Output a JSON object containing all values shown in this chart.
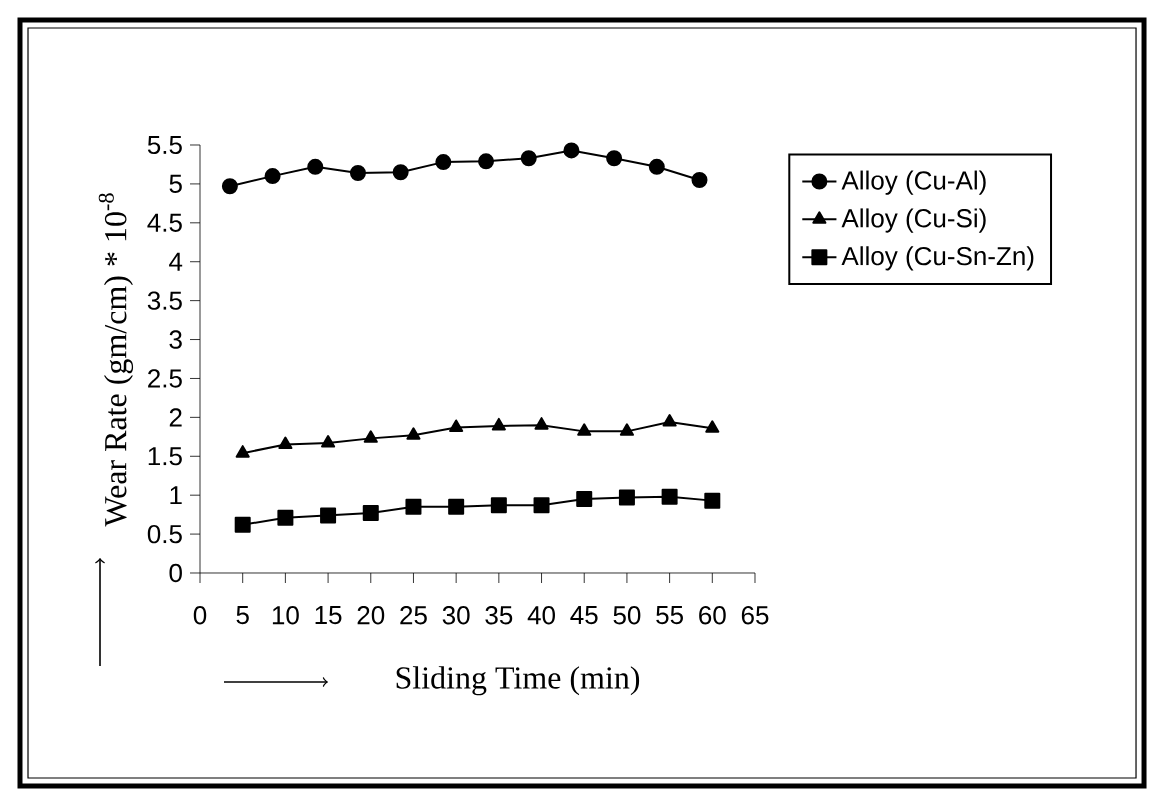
{
  "chart_data": {
    "type": "line",
    "xlabel": "Sliding Time (min)",
    "ylabel": "Wear Rate (gm/cm) * 10$^{-8}$",
    "xlim": [
      0,
      65
    ],
    "ylim": [
      0,
      5.5
    ],
    "xticks": [
      0,
      5,
      10,
      15,
      20,
      25,
      30,
      35,
      40,
      45,
      50,
      55,
      60,
      65
    ],
    "yticks": [
      0,
      0.5,
      1,
      1.5,
      2,
      2.5,
      3,
      3.5,
      4,
      4.5,
      5,
      5.5
    ],
    "legend": "right",
    "line_style": "solid",
    "series": [
      {
        "name": "Alloy (Cu-Al)",
        "color": "#000000",
        "marker": "circle",
        "x": [
          3.5,
          8.5,
          13.5,
          18.5,
          23.5,
          28.5,
          33.5,
          38.5,
          43.5,
          48.5,
          53.5,
          58.5
        ],
        "values": [
          4.97,
          5.1,
          5.22,
          5.14,
          5.15,
          5.28,
          5.29,
          5.33,
          5.43,
          5.33,
          5.22,
          5.05
        ]
      },
      {
        "name": "Alloy (Cu-Si)",
        "color": "#000000",
        "marker": "triangle",
        "x": [
          5,
          10,
          15,
          20,
          25,
          30,
          35,
          40,
          45,
          50,
          55,
          60
        ],
        "values": [
          1.54,
          1.65,
          1.67,
          1.73,
          1.77,
          1.87,
          1.89,
          1.9,
          1.82,
          1.82,
          1.94,
          1.86
        ]
      },
      {
        "name": "Alloy (Cu-Sn-Zn)",
        "color": "#000000",
        "marker": "square",
        "x": [
          5,
          10,
          15,
          20,
          25,
          30,
          35,
          40,
          45,
          50,
          55,
          60
        ],
        "values": [
          0.62,
          0.71,
          0.74,
          0.77,
          0.85,
          0.85,
          0.87,
          0.87,
          0.95,
          0.97,
          0.98,
          0.93
        ]
      }
    ]
  }
}
